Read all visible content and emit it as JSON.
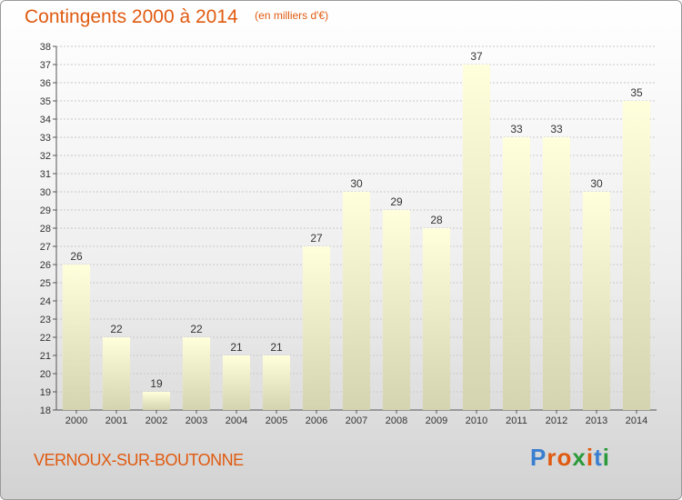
{
  "chart_data": {
    "type": "bar",
    "title": "Contingents 2000 à 2014",
    "subtitle": "(en milliers d'€)",
    "categories": [
      "2000",
      "2001",
      "2002",
      "2003",
      "2004",
      "2005",
      "2006",
      "2007",
      "2008",
      "2009",
      "2010",
      "2011",
      "2012",
      "2013",
      "2014"
    ],
    "values": [
      26,
      22,
      19,
      22,
      21,
      21,
      27,
      30,
      29,
      28,
      37,
      33,
      33,
      30,
      35
    ],
    "ylim": [
      18,
      38
    ],
    "yticks": [
      18,
      19,
      20,
      21,
      22,
      23,
      24,
      25,
      26,
      27,
      28,
      29,
      30,
      31,
      32,
      33,
      34,
      35,
      36,
      37,
      38
    ],
    "grid": true,
    "bar_color_top": "#ffffdc",
    "bar_color_bottom": "#d4d4b0"
  },
  "footer": {
    "commune": "VERNOUX-SUR-BOUTONNE",
    "logo_text": "Proxiti"
  },
  "colors": {
    "accent": "#e05a10",
    "logo": [
      "#3a7fd0",
      "#e05a10",
      "#e05a10",
      "#2a9a3a",
      "#e05a10",
      "#3a7fd0",
      "#2a9a3a"
    ]
  }
}
